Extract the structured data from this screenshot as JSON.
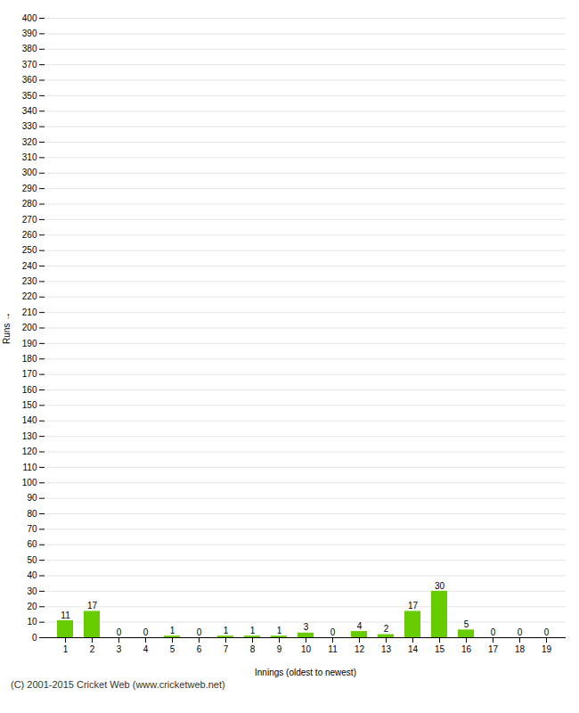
{
  "chart_data": {
    "type": "bar",
    "xlabel": "Innings (oldest to newest)",
    "ylabel": "Runs",
    "caption": "(C) 2001-2015 Cricket Web (www.cricketweb.net)",
    "categories": [
      "1",
      "2",
      "3",
      "4",
      "5",
      "6",
      "7",
      "8",
      "9",
      "10",
      "11",
      "12",
      "13",
      "14",
      "15",
      "16",
      "17",
      "18",
      "19"
    ],
    "values": [
      11,
      17,
      0,
      0,
      1,
      0,
      1,
      1,
      1,
      3,
      0,
      4,
      2,
      17,
      30,
      5,
      0,
      0,
      0
    ],
    "color": "#66cc00",
    "ylim": [
      0,
      400
    ],
    "yticks": [
      0,
      10,
      20,
      30,
      40,
      50,
      60,
      70,
      80,
      90,
      100,
      110,
      120,
      130,
      140,
      150,
      160,
      170,
      180,
      190,
      200,
      210,
      220,
      230,
      240,
      250,
      260,
      270,
      280,
      290,
      300,
      310,
      320,
      330,
      340,
      350,
      360,
      370,
      380,
      390,
      400
    ],
    "grid": true,
    "data_labels": true
  }
}
